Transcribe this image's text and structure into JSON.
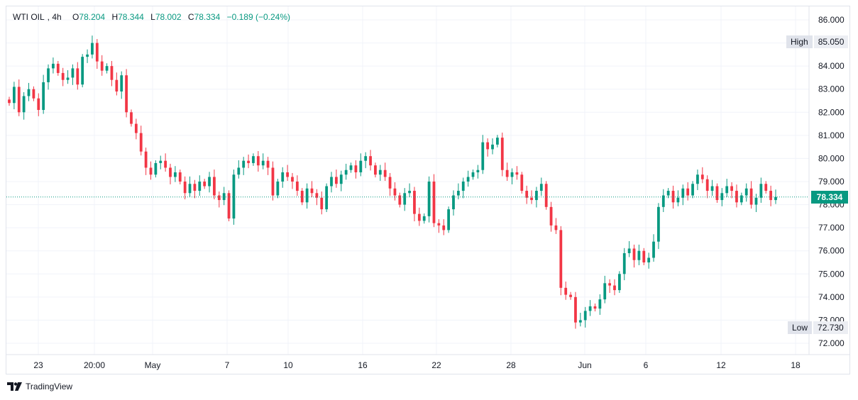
{
  "legend": {
    "symbol": "WTI OIL",
    "interval": "4h",
    "open_label": "O",
    "open": "78.204",
    "high_label": "H",
    "high": "78.344",
    "low_label": "L",
    "low": "78.002",
    "close_label": "C",
    "close": "78.334",
    "change": "−0.189 (−0.24%)"
  },
  "high_badge": {
    "label": "High",
    "value": "85.050"
  },
  "low_badge": {
    "label": "Low",
    "value": "72.730"
  },
  "last_price": "78.334",
  "branding": {
    "name": "TradingView"
  },
  "colors": {
    "up": "#089981",
    "down": "#f23645",
    "grid": "#f0f3fa",
    "accent": "#089981"
  },
  "chart_data": {
    "type": "candlestick",
    "title": "WTI OIL, 4h",
    "ylim": [
      71.6,
      86.3
    ],
    "y_ticks": [
      "72.000",
      "73.000",
      "74.000",
      "75.000",
      "76.000",
      "77.000",
      "78.000",
      "79.000",
      "80.000",
      "81.000",
      "82.000",
      "83.000",
      "84.000",
      "85.000",
      "86.000"
    ],
    "x_ticks": [
      "23",
      "20:00",
      "May",
      "7",
      "10",
      "16",
      "22",
      "28",
      "Jun",
      "6",
      "12",
      "18"
    ],
    "last_price": 78.334,
    "session_high": 85.05,
    "session_low": 72.73,
    "close_path": [
      82.4,
      83.1,
      82.0,
      82.7,
      83.0,
      82.6,
      82.1,
      83.3,
      83.9,
      84.1,
      83.7,
      83.4,
      83.5,
      83.9,
      83.2,
      84.4,
      84.5,
      85.0,
      84.2,
      83.8,
      84.0,
      83.4,
      82.9,
      83.6,
      82.0,
      81.5,
      81.1,
      80.3,
      79.6,
      79.3,
      79.8,
      79.9,
      79.6,
      79.2,
      79.4,
      79.0,
      78.5,
      78.9,
      78.6,
      79.0,
      78.8,
      79.2,
      78.4,
      78.2,
      78.5,
      77.4,
      79.3,
      79.6,
      79.9,
      79.8,
      80.1,
      79.7,
      79.9,
      79.6,
      78.4,
      79.0,
      79.4,
      79.2,
      79.0,
      78.6,
      78.1,
      78.7,
      78.5,
      78.3,
      77.8,
      78.8,
      79.2,
      78.9,
      79.3,
      79.5,
      79.7,
      79.4,
      79.9,
      80.1,
      79.7,
      79.3,
      79.5,
      79.2,
      78.7,
      78.4,
      78.0,
      78.5,
      78.6,
      77.6,
      77.3,
      77.5,
      79.0,
      77.2,
      77.1,
      76.9,
      77.8,
      78.4,
      78.6,
      79.0,
      79.2,
      79.4,
      79.5,
      80.7,
      80.4,
      80.6,
      80.9,
      79.5,
      79.2,
      79.4,
      79.3,
      78.6,
      78.3,
      78.2,
      78.6,
      78.9,
      77.9,
      77.1,
      76.9,
      74.4,
      74.1,
      74.0,
      72.9,
      73.0,
      73.4,
      73.6,
      73.5,
      73.9,
      74.6,
      74.5,
      74.3,
      75.0,
      75.9,
      76.1,
      75.6,
      76.0,
      75.5,
      75.7,
      76.4,
      77.9,
      78.4,
      78.6,
      78.1,
      78.3,
      78.7,
      78.4,
      78.9,
      79.3,
      79.1,
      78.6,
      78.8,
      78.2,
      78.5,
      78.8,
      78.6,
      78.1,
      78.4,
      78.7,
      78.0,
      78.3,
      78.9,
      78.6,
      78.2,
      78.334
    ]
  }
}
